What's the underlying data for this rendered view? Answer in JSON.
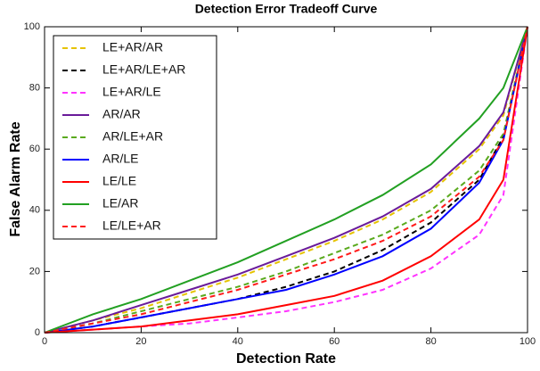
{
  "chart_data": {
    "type": "line",
    "title": "Detection Error Tradeoff Curve",
    "x_label": "Detection Rate",
    "y_label": "False Alarm Rate",
    "x": [
      0,
      10,
      20,
      30,
      40,
      50,
      60,
      70,
      80,
      90,
      95,
      100
    ],
    "xlim": [
      0,
      100
    ],
    "ylim": [
      0,
      100
    ],
    "xticks": [
      0,
      20,
      40,
      60,
      80,
      100
    ],
    "yticks": [
      0,
      20,
      40,
      60,
      80,
      100
    ],
    "grid": false,
    "legend": "upper left",
    "series": [
      {
        "name": "LE+AR/AR",
        "color": "#e6c300",
        "style": "dashed",
        "values": [
          0,
          4,
          8,
          13,
          18,
          24,
          30,
          37,
          46,
          60,
          71,
          100
        ]
      },
      {
        "name": "LE+AR/LE+AR",
        "color": "#000000",
        "style": "dashed",
        "values": [
          0,
          2,
          5,
          8,
          11,
          15,
          20,
          27,
          36,
          50,
          64,
          100
        ]
      },
      {
        "name": "LE+AR/LE",
        "color": "#ff33ff",
        "style": "dashed",
        "values": [
          0,
          1,
          2,
          3,
          5,
          7,
          10,
          14,
          21,
          32,
          45,
          100
        ]
      },
      {
        "name": "AR/AR",
        "color": "#6a1b9a",
        "style": "solid",
        "values": [
          0,
          4,
          9,
          14,
          19,
          25,
          31,
          38,
          47,
          61,
          72,
          100
        ]
      },
      {
        "name": "AR/LE+AR",
        "color": "#5aaa1e",
        "style": "dashed",
        "values": [
          0,
          3,
          7,
          11,
          15,
          20,
          26,
          32,
          40,
          53,
          65,
          100
        ]
      },
      {
        "name": "AR/LE",
        "color": "#0000ff",
        "style": "solid",
        "values": [
          0,
          2,
          5,
          8,
          11,
          14,
          19,
          25,
          34,
          49,
          63,
          100
        ]
      },
      {
        "name": "LE/LE",
        "color": "#ff0000",
        "style": "solid",
        "values": [
          0,
          1,
          2,
          4,
          6,
          9,
          12,
          17,
          25,
          37,
          50,
          100
        ]
      },
      {
        "name": "LE/AR",
        "color": "#22a022",
        "style": "solid",
        "values": [
          0,
          6,
          11,
          17,
          23,
          30,
          37,
          45,
          55,
          70,
          80,
          100
        ]
      },
      {
        "name": "LE/LE+AR",
        "color": "#ff1a1a",
        "style": "dashed",
        "values": [
          0,
          3,
          6,
          10,
          14,
          19,
          24,
          30,
          38,
          51,
          63,
          100
        ]
      }
    ]
  }
}
